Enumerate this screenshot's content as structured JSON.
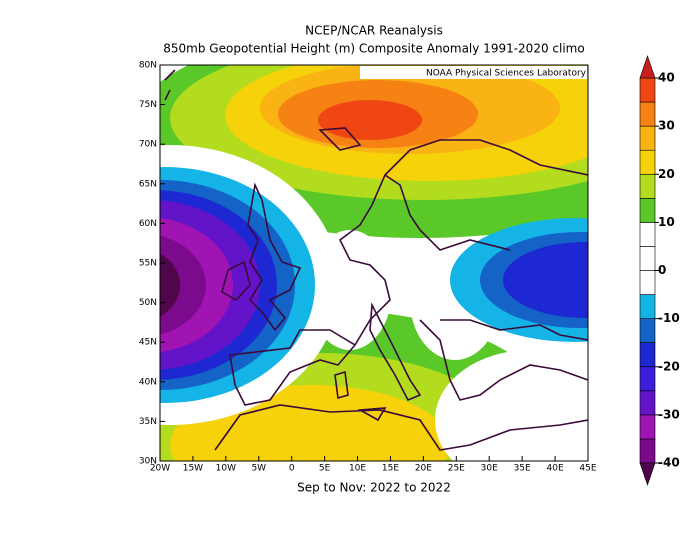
{
  "chart_data": {
    "type": "contour-map",
    "title": "NCEP/NCAR Reanalysis",
    "subtitle": "850mb Geopotential Height (m) Composite Anomaly 1991-2020 climo",
    "attribution": "NOAA Physical Sciences Laboratory",
    "x_label": "Sep to Nov: 2022 to 2022",
    "xlim": [
      -20,
      45
    ],
    "xticks": [
      {
        "value": -20,
        "label": "20W"
      },
      {
        "value": -15,
        "label": "15W"
      },
      {
        "value": -10,
        "label": "10W"
      },
      {
        "value": -5,
        "label": "5W"
      },
      0,
      {
        "value": 5,
        "label": "5E"
      },
      {
        "value": 10,
        "label": "10E"
      },
      {
        "value": 15,
        "label": "15E"
      },
      {
        "value": 20,
        "label": "20E"
      },
      {
        "value": 25,
        "label": "25E"
      },
      {
        "value": 30,
        "label": "30E"
      },
      {
        "value": 35,
        "label": "35E"
      },
      {
        "value": 40,
        "label": "40E"
      },
      {
        "value": 45,
        "label": "45E"
      }
    ],
    "ylim": [
      30,
      80
    ],
    "yticks": [
      {
        "value": 30,
        "label": "30N"
      },
      {
        "value": 35,
        "label": "35N"
      },
      {
        "value": 40,
        "label": "40N"
      },
      {
        "value": 45,
        "label": "45N"
      },
      {
        "value": 50,
        "label": "50N"
      },
      {
        "value": 55,
        "label": "55N"
      },
      {
        "value": 60,
        "label": "60N"
      },
      {
        "value": 65,
        "label": "65N"
      },
      {
        "value": 70,
        "label": "70N"
      },
      {
        "value": 75,
        "label": "75N"
      },
      {
        "value": 80,
        "label": "80N"
      }
    ],
    "colorbar": {
      "lim": [
        -40,
        40
      ],
      "ticks": [
        -40,
        -30,
        -20,
        -10,
        0,
        10,
        20,
        30,
        40
      ],
      "bounds": [
        -40,
        -35,
        -30,
        -25,
        -20,
        -15,
        -10,
        -5,
        0,
        5,
        10,
        15,
        20,
        25,
        30,
        35,
        40
      ],
      "colors": [
        "#7c0a8c",
        "#a014b4",
        "#6414c8",
        "#3c1edc",
        "#1e28d2",
        "#1464c8",
        "#14b4e6",
        "#ffffff",
        "#ffffff",
        "#ffffff",
        "#5ac828",
        "#b4dc1e",
        "#f5d20a",
        "#f9b414",
        "#f78214",
        "#f04614"
      ],
      "under_color": "#50064a",
      "over_color": "#c81e1e"
    }
  }
}
